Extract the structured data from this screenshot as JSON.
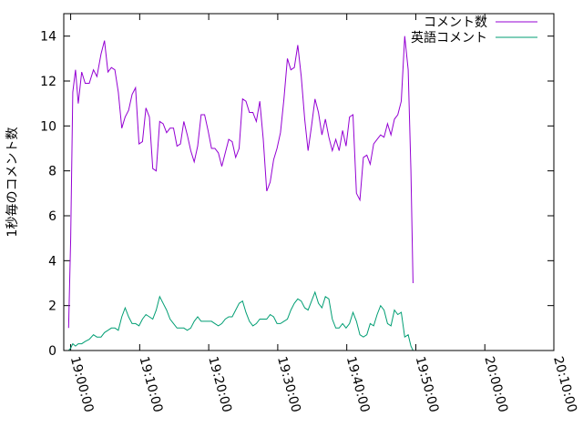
{
  "chart_data": {
    "type": "line",
    "ylabel": "1秒毎のコメント数",
    "ylim": [
      0,
      15
    ],
    "yticks": [
      "0",
      "2",
      "4",
      "6",
      "8",
      "10",
      "12",
      "14"
    ],
    "xlim_minutes": [
      -1,
      70
    ],
    "xticks": [
      {
        "minute": 0,
        "label": "19:00:00"
      },
      {
        "minute": 10,
        "label": "19:10:00"
      },
      {
        "minute": 20,
        "label": "19:20:00"
      },
      {
        "minute": 30,
        "label": "19:30:00"
      },
      {
        "minute": 40,
        "label": "19:40:00"
      },
      {
        "minute": 50,
        "label": "19:50:00"
      },
      {
        "minute": 60,
        "label": "20:00:00"
      },
      {
        "minute": 70,
        "label": "20:10:00"
      }
    ],
    "legend_position": "top-right",
    "series": [
      {
        "name": "コメント数",
        "color": "#9400d3",
        "points": [
          [
            -0.3,
            1.0
          ],
          [
            0.0,
            5.0
          ],
          [
            0.3,
            11.5
          ],
          [
            0.7,
            12.5
          ],
          [
            1.1,
            11.0
          ],
          [
            1.6,
            12.4
          ],
          [
            2.1,
            11.9
          ],
          [
            2.7,
            11.9
          ],
          [
            3.3,
            12.5
          ],
          [
            3.8,
            12.2
          ],
          [
            4.4,
            13.2
          ],
          [
            4.9,
            13.8
          ],
          [
            5.4,
            12.4
          ],
          [
            5.9,
            12.6
          ],
          [
            6.4,
            12.5
          ],
          [
            6.9,
            11.5
          ],
          [
            7.4,
            9.9
          ],
          [
            7.9,
            10.4
          ],
          [
            8.4,
            10.7
          ],
          [
            8.9,
            11.4
          ],
          [
            9.4,
            11.7
          ],
          [
            9.9,
            9.2
          ],
          [
            10.4,
            9.3
          ],
          [
            10.9,
            10.8
          ],
          [
            11.4,
            10.4
          ],
          [
            11.9,
            8.1
          ],
          [
            12.4,
            8.0
          ],
          [
            12.9,
            10.2
          ],
          [
            13.4,
            10.1
          ],
          [
            13.9,
            9.7
          ],
          [
            14.4,
            9.9
          ],
          [
            14.9,
            9.9
          ],
          [
            15.4,
            9.1
          ],
          [
            15.9,
            9.2
          ],
          [
            16.4,
            10.2
          ],
          [
            16.9,
            9.6
          ],
          [
            17.4,
            8.9
          ],
          [
            17.9,
            8.4
          ],
          [
            18.4,
            9.1
          ],
          [
            18.9,
            10.5
          ],
          [
            19.4,
            10.5
          ],
          [
            19.9,
            9.8
          ],
          [
            20.4,
            9.0
          ],
          [
            20.9,
            9.0
          ],
          [
            21.4,
            8.8
          ],
          [
            21.9,
            8.2
          ],
          [
            22.4,
            8.8
          ],
          [
            22.9,
            9.4
          ],
          [
            23.4,
            9.3
          ],
          [
            23.9,
            8.6
          ],
          [
            24.4,
            9.0
          ],
          [
            24.9,
            11.2
          ],
          [
            25.4,
            11.1
          ],
          [
            25.9,
            10.6
          ],
          [
            26.4,
            10.6
          ],
          [
            26.9,
            10.2
          ],
          [
            27.4,
            11.1
          ],
          [
            27.9,
            9.4
          ],
          [
            28.4,
            7.1
          ],
          [
            28.9,
            7.5
          ],
          [
            29.4,
            8.5
          ],
          [
            29.9,
            9.0
          ],
          [
            30.4,
            9.7
          ],
          [
            30.9,
            11.2
          ],
          [
            31.4,
            13.0
          ],
          [
            31.9,
            12.5
          ],
          [
            32.4,
            12.6
          ],
          [
            32.9,
            13.6
          ],
          [
            33.4,
            12.2
          ],
          [
            33.9,
            10.3
          ],
          [
            34.4,
            8.9
          ],
          [
            34.9,
            10.0
          ],
          [
            35.4,
            11.2
          ],
          [
            35.9,
            10.6
          ],
          [
            36.4,
            9.6
          ],
          [
            36.9,
            10.3
          ],
          [
            37.4,
            9.5
          ],
          [
            37.9,
            8.9
          ],
          [
            38.4,
            9.4
          ],
          [
            38.9,
            8.9
          ],
          [
            39.4,
            9.8
          ],
          [
            39.9,
            9.1
          ],
          [
            40.4,
            10.4
          ],
          [
            40.9,
            10.5
          ],
          [
            41.4,
            7.0
          ],
          [
            41.9,
            6.7
          ],
          [
            42.4,
            8.6
          ],
          [
            42.9,
            8.7
          ],
          [
            43.4,
            8.3
          ],
          [
            43.9,
            9.2
          ],
          [
            44.4,
            9.4
          ],
          [
            44.9,
            9.6
          ],
          [
            45.4,
            9.5
          ],
          [
            45.9,
            10.1
          ],
          [
            46.4,
            9.6
          ],
          [
            46.9,
            10.3
          ],
          [
            47.4,
            10.5
          ],
          [
            47.9,
            11.1
          ],
          [
            48.4,
            14.0
          ],
          [
            48.9,
            12.5
          ],
          [
            49.3,
            8.0
          ],
          [
            49.6,
            3.0
          ]
        ]
      },
      {
        "name": "英語コメント",
        "color": "#009e73",
        "points": [
          [
            -0.3,
            0.0
          ],
          [
            0.0,
            0.1
          ],
          [
            0.3,
            0.3
          ],
          [
            0.7,
            0.2
          ],
          [
            1.1,
            0.3
          ],
          [
            1.6,
            0.3
          ],
          [
            2.1,
            0.4
          ],
          [
            2.7,
            0.5
          ],
          [
            3.3,
            0.7
          ],
          [
            3.8,
            0.6
          ],
          [
            4.4,
            0.6
          ],
          [
            4.9,
            0.8
          ],
          [
            5.4,
            0.9
          ],
          [
            5.9,
            1.0
          ],
          [
            6.4,
            1.0
          ],
          [
            6.9,
            0.9
          ],
          [
            7.4,
            1.5
          ],
          [
            7.9,
            1.9
          ],
          [
            8.4,
            1.5
          ],
          [
            8.9,
            1.2
          ],
          [
            9.4,
            1.2
          ],
          [
            9.9,
            1.1
          ],
          [
            10.4,
            1.4
          ],
          [
            10.9,
            1.6
          ],
          [
            11.4,
            1.5
          ],
          [
            11.9,
            1.4
          ],
          [
            12.4,
            1.8
          ],
          [
            12.9,
            2.4
          ],
          [
            13.4,
            2.1
          ],
          [
            13.9,
            1.8
          ],
          [
            14.4,
            1.4
          ],
          [
            14.9,
            1.2
          ],
          [
            15.4,
            1.0
          ],
          [
            15.9,
            1.0
          ],
          [
            16.4,
            1.0
          ],
          [
            16.9,
            0.9
          ],
          [
            17.4,
            1.0
          ],
          [
            17.9,
            1.3
          ],
          [
            18.4,
            1.5
          ],
          [
            18.9,
            1.3
          ],
          [
            19.4,
            1.3
          ],
          [
            19.9,
            1.3
          ],
          [
            20.4,
            1.3
          ],
          [
            20.9,
            1.2
          ],
          [
            21.4,
            1.1
          ],
          [
            21.9,
            1.2
          ],
          [
            22.4,
            1.4
          ],
          [
            22.9,
            1.5
          ],
          [
            23.4,
            1.5
          ],
          [
            23.9,
            1.8
          ],
          [
            24.4,
            2.1
          ],
          [
            24.9,
            2.2
          ],
          [
            25.4,
            1.7
          ],
          [
            25.9,
            1.3
          ],
          [
            26.4,
            1.1
          ],
          [
            26.9,
            1.2
          ],
          [
            27.4,
            1.4
          ],
          [
            27.9,
            1.4
          ],
          [
            28.4,
            1.4
          ],
          [
            28.9,
            1.6
          ],
          [
            29.4,
            1.5
          ],
          [
            29.9,
            1.2
          ],
          [
            30.4,
            1.2
          ],
          [
            30.9,
            1.3
          ],
          [
            31.4,
            1.4
          ],
          [
            31.9,
            1.8
          ],
          [
            32.4,
            2.1
          ],
          [
            32.9,
            2.3
          ],
          [
            33.4,
            2.2
          ],
          [
            33.9,
            1.9
          ],
          [
            34.4,
            1.8
          ],
          [
            34.9,
            2.2
          ],
          [
            35.4,
            2.6
          ],
          [
            35.9,
            2.1
          ],
          [
            36.4,
            1.9
          ],
          [
            36.9,
            2.4
          ],
          [
            37.4,
            2.3
          ],
          [
            37.9,
            1.4
          ],
          [
            38.4,
            1.0
          ],
          [
            38.9,
            1.0
          ],
          [
            39.4,
            1.2
          ],
          [
            39.9,
            1.0
          ],
          [
            40.4,
            1.2
          ],
          [
            40.9,
            1.7
          ],
          [
            41.4,
            1.3
          ],
          [
            41.9,
            0.7
          ],
          [
            42.4,
            0.6
          ],
          [
            42.9,
            0.7
          ],
          [
            43.4,
            1.2
          ],
          [
            43.9,
            1.1
          ],
          [
            44.4,
            1.6
          ],
          [
            44.9,
            2.0
          ],
          [
            45.4,
            1.8
          ],
          [
            45.9,
            1.2
          ],
          [
            46.4,
            1.1
          ],
          [
            46.9,
            1.8
          ],
          [
            47.4,
            1.6
          ],
          [
            47.9,
            1.7
          ],
          [
            48.4,
            0.6
          ],
          [
            48.9,
            0.7
          ],
          [
            49.3,
            0.2
          ],
          [
            49.6,
            0.0
          ]
        ]
      }
    ]
  }
}
